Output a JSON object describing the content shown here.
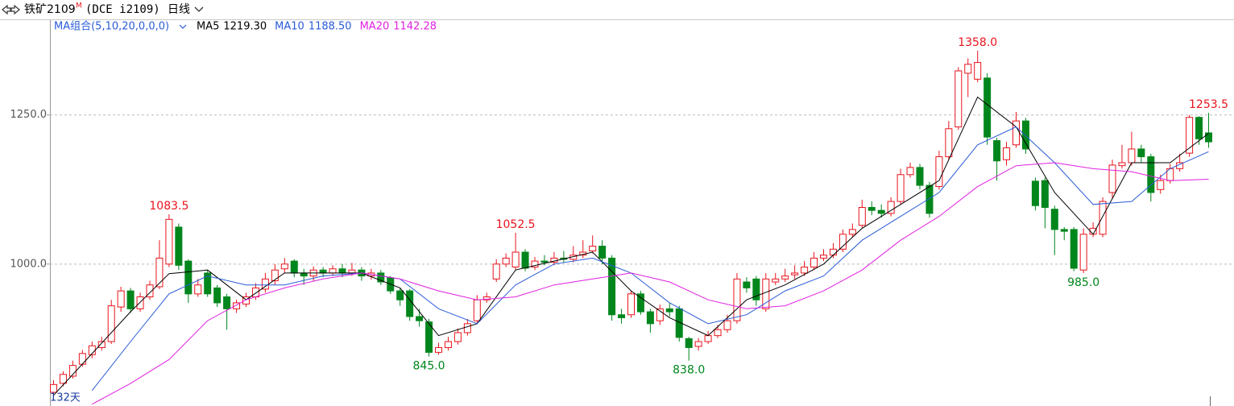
{
  "chart_data": {
    "type": "candlestick",
    "title": "铁矿2109",
    "title_sup": "M",
    "subtitle": "(DCE i2109)",
    "period": "日线",
    "ma_group": "MA组合(5,10,20,0,0,0)",
    "bar_count": "132天",
    "up_color": "#e8141d",
    "down_color": "#00861c",
    "ylim": [
      762,
      1405
    ],
    "yticks": [
      {
        "value": 1000,
        "label": "1000.0"
      },
      {
        "value": 1250,
        "label": "1250.0"
      }
    ],
    "grid": true,
    "candles": [
      {
        "open": 785,
        "high": 805,
        "low": 778,
        "close": 798
      },
      {
        "open": 800,
        "high": 820,
        "low": 795,
        "close": 815
      },
      {
        "open": 812,
        "high": 838,
        "low": 808,
        "close": 830
      },
      {
        "open": 832,
        "high": 856,
        "low": 828,
        "close": 850
      },
      {
        "open": 848,
        "high": 870,
        "low": 842,
        "close": 863
      },
      {
        "open": 860,
        "high": 878,
        "low": 855,
        "close": 870
      },
      {
        "open": 870,
        "high": 940,
        "low": 866,
        "close": 930
      },
      {
        "open": 928,
        "high": 962,
        "low": 920,
        "close": 955
      },
      {
        "open": 955,
        "high": 960,
        "low": 918,
        "close": 925
      },
      {
        "open": 925,
        "high": 952,
        "low": 920,
        "close": 945
      },
      {
        "open": 945,
        "high": 972,
        "low": 940,
        "close": 965
      },
      {
        "open": 962,
        "high": 1040,
        "low": 958,
        "close": 1010
      },
      {
        "open": 1000,
        "high": 1083.5,
        "low": 995,
        "close": 1075,
        "high_label": "1083.5"
      },
      {
        "open": 1062,
        "high": 1068,
        "low": 990,
        "close": 998
      },
      {
        "open": 1005,
        "high": 1008,
        "low": 935,
        "close": 950
      },
      {
        "open": 950,
        "high": 975,
        "low": 945,
        "close": 965
      },
      {
        "open": 985,
        "high": 990,
        "low": 945,
        "close": 950
      },
      {
        "open": 960,
        "high": 965,
        "low": 928,
        "close": 935
      },
      {
        "open": 945,
        "high": 950,
        "low": 890,
        "close": 925
      },
      {
        "open": 925,
        "high": 940,
        "low": 918,
        "close": 935
      },
      {
        "open": 933,
        "high": 952,
        "low": 928,
        "close": 945
      },
      {
        "open": 945,
        "high": 968,
        "low": 940,
        "close": 960
      },
      {
        "open": 958,
        "high": 985,
        "low": 952,
        "close": 975
      },
      {
        "open": 972,
        "high": 1000,
        "low": 965,
        "close": 990
      },
      {
        "open": 992,
        "high": 1010,
        "low": 985,
        "close": 1000
      },
      {
        "open": 1005,
        "high": 1008,
        "low": 978,
        "close": 985
      },
      {
        "open": 985,
        "high": 992,
        "low": 965,
        "close": 980
      },
      {
        "open": 980,
        "high": 996,
        "low": 972,
        "close": 990
      },
      {
        "open": 990,
        "high": 995,
        "low": 978,
        "close": 985
      },
      {
        "open": 985,
        "high": 998,
        "low": 980,
        "close": 992
      },
      {
        "open": 992,
        "high": 1000,
        "low": 978,
        "close": 985
      },
      {
        "open": 985,
        "high": 1002,
        "low": 980,
        "close": 990
      },
      {
        "open": 990,
        "high": 995,
        "low": 972,
        "close": 980
      },
      {
        "open": 980,
        "high": 992,
        "low": 974,
        "close": 985
      },
      {
        "open": 985,
        "high": 990,
        "low": 965,
        "close": 970
      },
      {
        "open": 977,
        "high": 980,
        "low": 950,
        "close": 955
      },
      {
        "open": 955,
        "high": 960,
        "low": 930,
        "close": 940
      },
      {
        "open": 955,
        "high": 958,
        "low": 905,
        "close": 912
      },
      {
        "open": 912,
        "high": 925,
        "low": 895,
        "close": 905
      },
      {
        "open": 903,
        "high": 908,
        "low": 845,
        "close": 852,
        "low_label": "845.0"
      },
      {
        "open": 852,
        "high": 868,
        "low": 848,
        "close": 860
      },
      {
        "open": 860,
        "high": 878,
        "low": 855,
        "close": 870
      },
      {
        "open": 870,
        "high": 892,
        "low": 865,
        "close": 885
      },
      {
        "open": 885,
        "high": 908,
        "low": 880,
        "close": 900
      },
      {
        "open": 905,
        "high": 948,
        "low": 900,
        "close": 940
      },
      {
        "open": 940,
        "high": 952,
        "low": 935,
        "close": 945
      },
      {
        "open": 975,
        "high": 1008,
        "low": 970,
        "close": 1000
      },
      {
        "open": 1000,
        "high": 1018,
        "low": 995,
        "close": 1010
      },
      {
        "open": 995,
        "high": 1052.5,
        "low": 990,
        "close": 1020,
        "high_label": "1052.5"
      },
      {
        "open": 1020,
        "high": 1025,
        "low": 988,
        "close": 993
      },
      {
        "open": 995,
        "high": 1012,
        "low": 990,
        "close": 1005
      },
      {
        "open": 1005,
        "high": 1015,
        "low": 998,
        "close": 1003
      },
      {
        "open": 1003,
        "high": 1020,
        "low": 998,
        "close": 1010
      },
      {
        "open": 1010,
        "high": 1022,
        "low": 1002,
        "close": 1008
      },
      {
        "open": 1008,
        "high": 1030,
        "low": 1003,
        "close": 1015
      },
      {
        "open": 1015,
        "high": 1040,
        "low": 1010,
        "close": 1020
      },
      {
        "open": 1022,
        "high": 1048,
        "low": 1018,
        "close": 1030
      },
      {
        "open": 1030,
        "high": 1040,
        "low": 1000,
        "close": 1010
      },
      {
        "open": 1010,
        "high": 1015,
        "low": 905,
        "close": 915
      },
      {
        "open": 915,
        "high": 925,
        "low": 900,
        "close": 910
      },
      {
        "open": 915,
        "high": 955,
        "low": 910,
        "close": 950
      },
      {
        "open": 950,
        "high": 955,
        "low": 915,
        "close": 920
      },
      {
        "open": 920,
        "high": 925,
        "low": 885,
        "close": 900
      },
      {
        "open": 905,
        "high": 932,
        "low": 898,
        "close": 925
      },
      {
        "open": 925,
        "high": 935,
        "low": 912,
        "close": 920
      },
      {
        "open": 925,
        "high": 930,
        "low": 870,
        "close": 877
      },
      {
        "open": 875,
        "high": 878,
        "low": 838,
        "close": 860,
        "low_label": "838.0"
      },
      {
        "open": 862,
        "high": 876,
        "low": 855,
        "close": 870
      },
      {
        "open": 870,
        "high": 888,
        "low": 866,
        "close": 880
      },
      {
        "open": 880,
        "high": 898,
        "low": 876,
        "close": 890
      },
      {
        "open": 890,
        "high": 915,
        "low": 885,
        "close": 905
      },
      {
        "open": 905,
        "high": 985,
        "low": 900,
        "close": 975
      },
      {
        "open": 970,
        "high": 978,
        "low": 952,
        "close": 960
      },
      {
        "open": 975,
        "high": 980,
        "low": 930,
        "close": 940
      },
      {
        "open": 925,
        "high": 985,
        "low": 920,
        "close": 975
      },
      {
        "open": 970,
        "high": 985,
        "low": 965,
        "close": 975
      },
      {
        "open": 975,
        "high": 992,
        "low": 970,
        "close": 980
      },
      {
        "open": 982,
        "high": 998,
        "low": 975,
        "close": 985
      },
      {
        "open": 985,
        "high": 1005,
        "low": 980,
        "close": 995
      },
      {
        "open": 995,
        "high": 1020,
        "low": 990,
        "close": 1010
      },
      {
        "open": 1010,
        "high": 1025,
        "low": 1005,
        "close": 1015
      },
      {
        "open": 1015,
        "high": 1035,
        "low": 1010,
        "close": 1025
      },
      {
        "open": 1025,
        "high": 1058,
        "low": 1020,
        "close": 1050
      },
      {
        "open": 1050,
        "high": 1068,
        "low": 1045,
        "close": 1058
      },
      {
        "open": 1065,
        "high": 1108,
        "low": 1060,
        "close": 1095
      },
      {
        "open": 1095,
        "high": 1105,
        "low": 1082,
        "close": 1090
      },
      {
        "open": 1090,
        "high": 1100,
        "low": 1078,
        "close": 1085
      },
      {
        "open": 1085,
        "high": 1112,
        "low": 1080,
        "close": 1105
      },
      {
        "open": 1105,
        "high": 1160,
        "low": 1100,
        "close": 1150
      },
      {
        "open": 1150,
        "high": 1170,
        "low": 1145,
        "close": 1162
      },
      {
        "open": 1162,
        "high": 1168,
        "low": 1125,
        "close": 1132
      },
      {
        "open": 1132,
        "high": 1138,
        "low": 1078,
        "close": 1085
      },
      {
        "open": 1130,
        "high": 1190,
        "low": 1125,
        "close": 1180
      },
      {
        "open": 1180,
        "high": 1240,
        "low": 1175,
        "close": 1227
      },
      {
        "open": 1230,
        "high": 1330,
        "low": 1225,
        "close": 1324
      },
      {
        "open": 1320,
        "high": 1345,
        "low": 1280,
        "close": 1335
      },
      {
        "open": 1310,
        "high": 1358,
        "low": 1305,
        "close": 1338,
        "high_label": "1358.0"
      },
      {
        "open": 1312,
        "high": 1320,
        "low": 1200,
        "close": 1213
      },
      {
        "open": 1207,
        "high": 1212,
        "low": 1140,
        "close": 1173
      },
      {
        "open": 1175,
        "high": 1205,
        "low": 1165,
        "close": 1195
      },
      {
        "open": 1200,
        "high": 1255,
        "low": 1195,
        "close": 1240
      },
      {
        "open": 1240,
        "high": 1245,
        "low": 1185,
        "close": 1193
      },
      {
        "open": 1139,
        "high": 1145,
        "low": 1090,
        "close": 1098
      },
      {
        "open": 1140,
        "high": 1145,
        "low": 1060,
        "close": 1095
      },
      {
        "open": 1092,
        "high": 1098,
        "low": 1015,
        "close": 1058
      },
      {
        "open": 1058,
        "high": 1062,
        "low": 1040,
        "close": 1055
      },
      {
        "open": 1058,
        "high": 1062,
        "low": 988,
        "close": 993
      },
      {
        "open": 990,
        "high": 1060,
        "low": 985,
        "close": 1050,
        "low_label": "985.0"
      },
      {
        "open": 1050,
        "high": 1070,
        "low": 1045,
        "close": 1060
      },
      {
        "open": 1050,
        "high": 1112,
        "low": 1045,
        "close": 1105
      },
      {
        "open": 1120,
        "high": 1175,
        "low": 1110,
        "close": 1166
      },
      {
        "open": 1165,
        "high": 1200,
        "low": 1160,
        "close": 1170
      },
      {
        "open": 1170,
        "high": 1222,
        "low": 1165,
        "close": 1193
      },
      {
        "open": 1193,
        "high": 1200,
        "low": 1170,
        "close": 1180
      },
      {
        "open": 1180,
        "high": 1185,
        "low": 1105,
        "close": 1120
      },
      {
        "open": 1125,
        "high": 1150,
        "low": 1118,
        "close": 1140
      },
      {
        "open": 1140,
        "high": 1168,
        "low": 1135,
        "close": 1160
      },
      {
        "open": 1160,
        "high": 1185,
        "low": 1155,
        "close": 1170
      },
      {
        "open": 1186,
        "high": 1250,
        "low": 1180,
        "close": 1246
      },
      {
        "open": 1246,
        "high": 1248,
        "low": 1200,
        "close": 1210
      },
      {
        "open": 1220,
        "high": 1253.5,
        "low": 1195,
        "close": 1205,
        "high_label": "1253.5"
      }
    ],
    "series": [
      {
        "name": "MA5",
        "color": "#000000",
        "x": [
          0,
          4,
          8,
          12,
          16,
          20,
          24,
          28,
          32,
          36,
          40,
          44,
          48,
          52,
          56,
          60,
          64,
          68,
          72,
          76,
          80,
          84,
          88,
          92,
          96,
          100,
          104,
          108,
          112,
          116,
          120
        ],
        "values": [
          780,
          850,
          920,
          984,
          990,
          940,
          985,
          985,
          985,
          960,
          880,
          900,
          990,
          1005,
          1020,
          955,
          910,
          880,
          940,
          965,
          1000,
          1060,
          1100,
          1140,
          1280,
          1230,
          1120,
          1050,
          1170,
          1170,
          1219.3
        ],
        "value_labels": [
          null,
          null,
          null,
          null,
          null,
          null,
          null,
          null,
          null,
          null,
          null,
          null,
          null,
          null,
          null,
          null,
          null,
          null,
          null,
          null,
          null,
          null,
          null,
          null,
          null,
          null,
          null,
          null,
          null,
          null,
          "1219.30"
        ]
      },
      {
        "name": "MA10",
        "color": "#2a5bd7",
        "x": [
          0,
          4,
          8,
          12,
          16,
          20,
          24,
          28,
          32,
          36,
          40,
          44,
          48,
          52,
          56,
          60,
          64,
          68,
          72,
          76,
          80,
          84,
          88,
          92,
          96,
          100,
          104,
          108,
          112,
          116,
          120
        ],
        "values": [
          null,
          788,
          870,
          950,
          980,
          965,
          965,
          980,
          985,
          975,
          925,
          900,
          965,
          1000,
          1010,
          985,
          935,
          900,
          915,
          955,
          980,
          1040,
          1080,
          1120,
          1200,
          1230,
          1170,
          1100,
          1105,
          1160,
          1188.5
        ],
        "value_labels": [
          null,
          null,
          null,
          null,
          null,
          null,
          null,
          null,
          null,
          null,
          null,
          null,
          null,
          null,
          null,
          null,
          null,
          null,
          null,
          null,
          null,
          null,
          null,
          null,
          null,
          null,
          null,
          null,
          null,
          null,
          "1188.50"
        ]
      },
      {
        "name": "MA20",
        "color": "#e020e0",
        "x": [
          0,
          4,
          8,
          12,
          16,
          20,
          24,
          28,
          32,
          36,
          40,
          44,
          48,
          52,
          56,
          60,
          64,
          68,
          72,
          76,
          80,
          84,
          88,
          92,
          96,
          100,
          104,
          108,
          112,
          116,
          120
        ],
        "values": [
          null,
          765,
          800,
          840,
          905,
          940,
          960,
          975,
          985,
          975,
          955,
          940,
          945,
          965,
          975,
          985,
          970,
          940,
          925,
          930,
          955,
          990,
          1040,
          1080,
          1130,
          1165,
          1170,
          1160,
          1155,
          1140,
          1142.28
        ],
        "value_labels": [
          null,
          null,
          null,
          null,
          null,
          null,
          null,
          null,
          null,
          null,
          null,
          null,
          null,
          null,
          null,
          null,
          null,
          null,
          null,
          null,
          null,
          null,
          null,
          null,
          null,
          null,
          null,
          null,
          null,
          null,
          "1142.28"
        ]
      }
    ]
  }
}
